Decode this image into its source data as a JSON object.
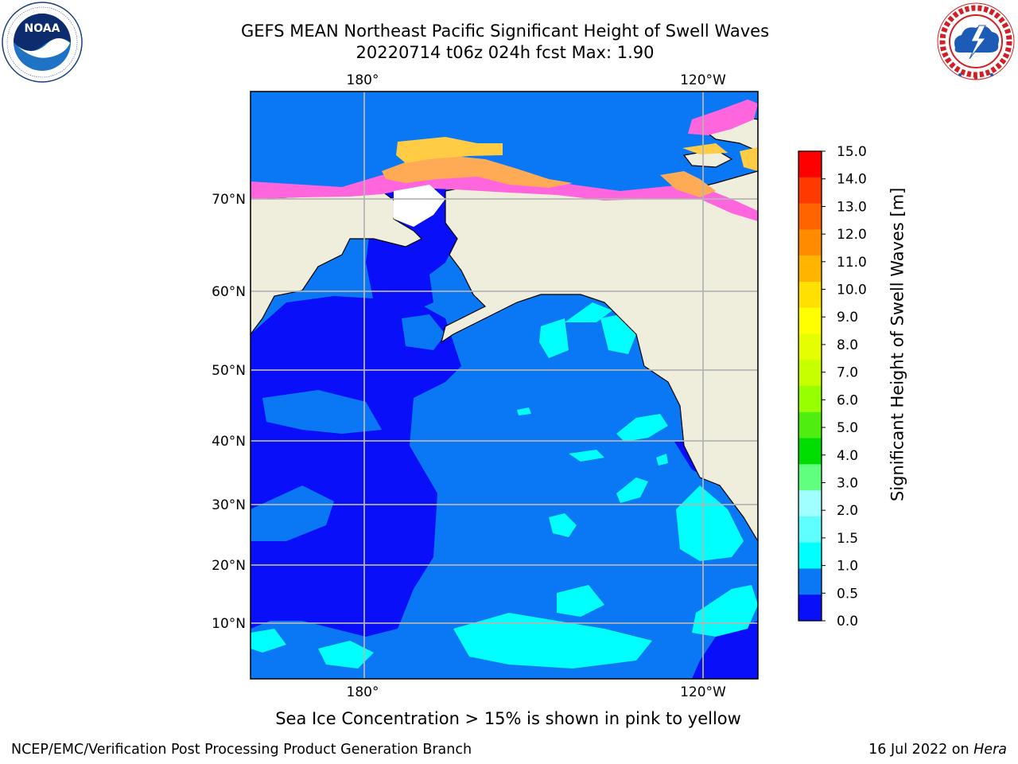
{
  "header": {
    "title_line1": "GEFS MEAN Northeast Pacific Significant Height of Swell Waves",
    "title_line2": "20220714 t06z 024h fcst   Max: 1.90"
  },
  "logos": {
    "left": "NOAA",
    "left_ring_text": "NATIONAL OCEANIC AND ATMOSPHERIC ADMINISTRATION · U.S. DEPARTMENT OF COMMERCE",
    "right_ring_text": "NATIONAL WEATHER SERVICE"
  },
  "map": {
    "lon_labels": [
      "180°",
      "120°W"
    ],
    "lat_labels": [
      "70°N",
      "60°N",
      "50°N",
      "40°N",
      "30°N",
      "20°N",
      "10°N"
    ],
    "colors": {
      "land": "#efeddc",
      "ocean_deep": "#0a0ffa",
      "ocean_mid": "#0a78f5",
      "ocean_high": "#00ffff",
      "ice_pink": "#ff66dd",
      "ice_orange": "#ffaa55",
      "ice_yellow": "#ffcc44",
      "grid": "#b4b4b4"
    }
  },
  "colorbar": {
    "label": "Significant Height of Swell Waves [m]",
    "ticks": [
      "15.0",
      "14.0",
      "13.0",
      "12.0",
      "11.0",
      "10.0",
      "9.0",
      "8.0",
      "7.0",
      "6.0",
      "5.0",
      "4.0",
      "3.0",
      "2.0",
      "1.5",
      "1.0",
      "0.5",
      "0.0"
    ],
    "colors_top_to_bottom": [
      "#ff0000",
      "#ff3a00",
      "#ff6400",
      "#ff8c00",
      "#ffb400",
      "#ffe000",
      "#ffff00",
      "#e6ff00",
      "#c8ff00",
      "#96ff00",
      "#50ee10",
      "#00dd00",
      "#60ff80",
      "#a0ffff",
      "#60ffff",
      "#00ffff",
      "#0a78f5",
      "#0a0ffa"
    ]
  },
  "note": "Sea Ice Concentration > 15% is shown in pink to yellow",
  "footer": {
    "left": "NCEP/EMC/Verification Post Processing Product Generation Branch",
    "right_date": "16 Jul 2022 on ",
    "right_machine": "Hera"
  }
}
